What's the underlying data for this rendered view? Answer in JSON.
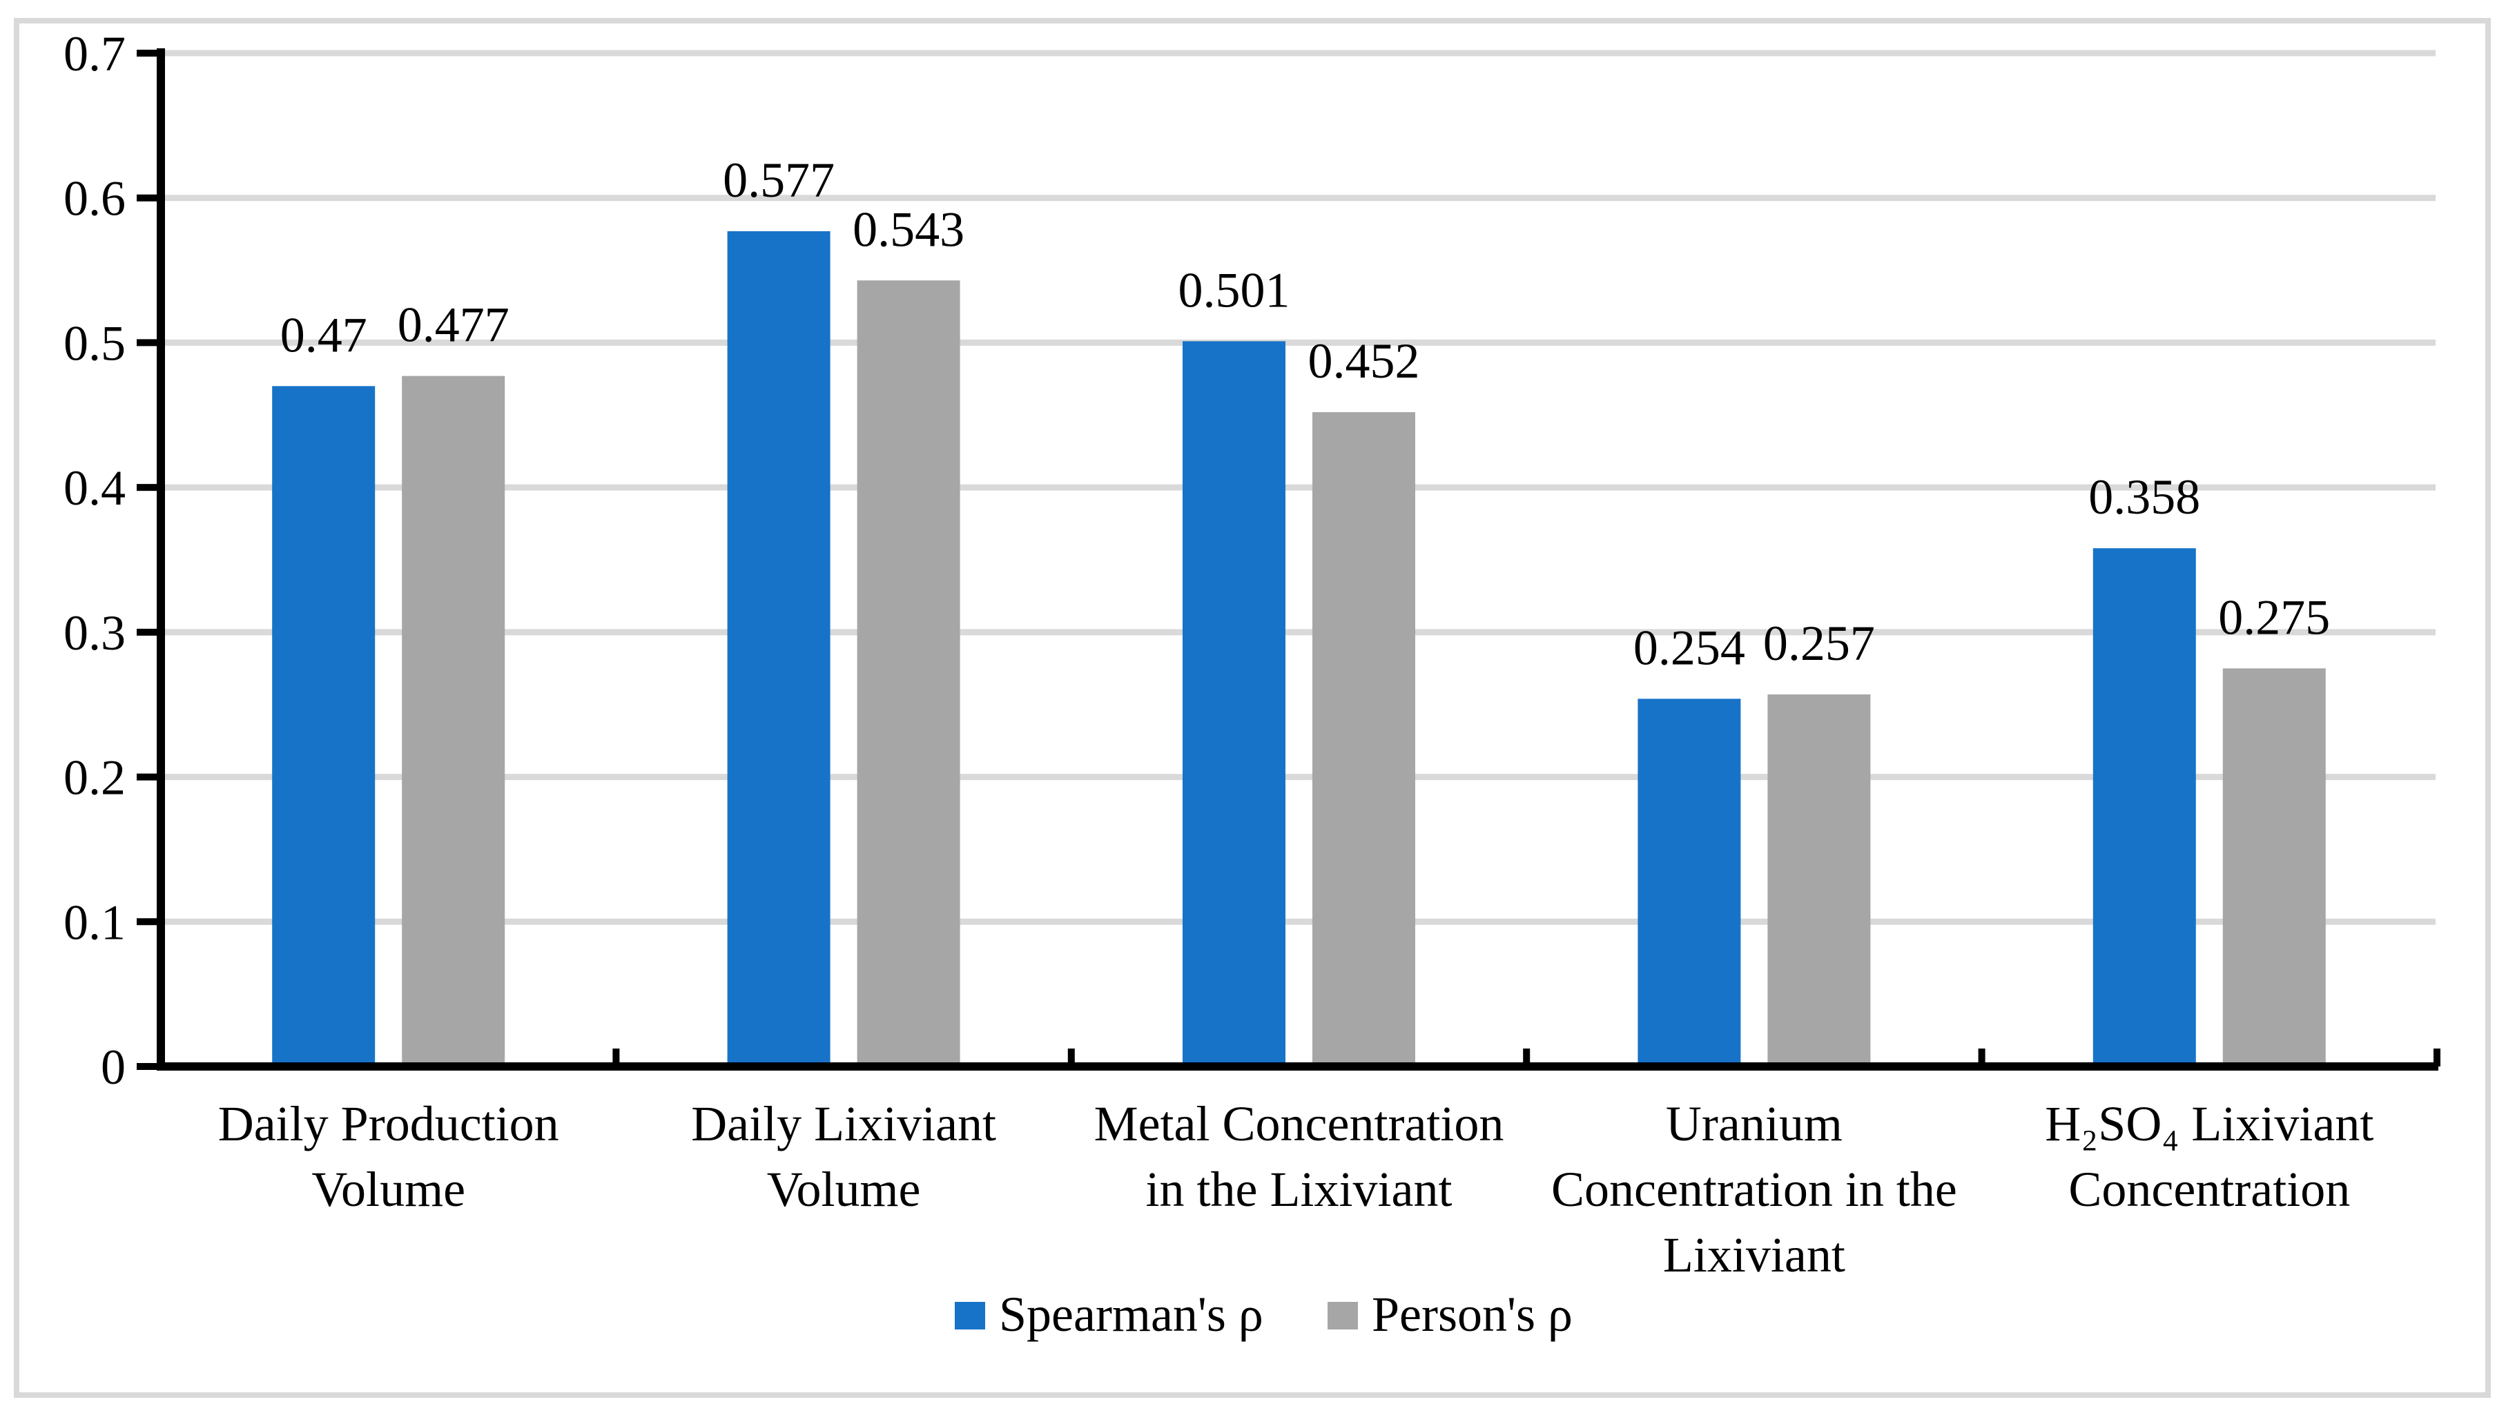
{
  "chart_data": {
    "type": "bar",
    "title": "",
    "xlabel": "",
    "ylabel": "",
    "grid": true,
    "legend_position": "bottom",
    "background_color": "#ffffff",
    "frame_color": "#d9d9d9",
    "gridline_color": "#d9d9d9",
    "axis_color": "#000000",
    "categories": [
      {
        "label": "Daily Production Volume",
        "lines": [
          "Daily Production",
          "Volume"
        ]
      },
      {
        "label": "Daily Lixiviant Volume",
        "lines": [
          "Daily Lixiviant",
          "Volume"
        ]
      },
      {
        "label": "Metal Concentration in the Lixiviant",
        "lines": [
          "Metal Concentration",
          "in the Lixiviant"
        ]
      },
      {
        "label": "Uranium Concentration in the Lixiviant",
        "lines": [
          "Uranium",
          "Concentration in the",
          "Lixiviant"
        ]
      },
      {
        "label": "H₂SO₄ Lixiviant Concentration",
        "lines": [
          "H₂SO₄ Lixiviant",
          "Concentration"
        ]
      }
    ],
    "series": [
      {
        "name": "Spearman's ρ",
        "color": "#1773c8",
        "values": [
          0.47,
          0.577,
          0.501,
          0.254,
          0.358
        ],
        "data_labels": [
          "0.47",
          "0.577",
          "0.501",
          "0.254",
          "0.358"
        ]
      },
      {
        "name": "Person's ρ",
        "color": "#a6a6a6",
        "values": [
          0.477,
          0.543,
          0.452,
          0.257,
          0.275
        ],
        "data_labels": [
          "0.477",
          "0.543",
          "0.452",
          "0.257",
          "0.275"
        ]
      }
    ],
    "y_axis": {
      "min": 0,
      "max": 0.7,
      "step": 0.1,
      "tick_labels": [
        "0",
        "0.1",
        "0.2",
        "0.3",
        "0.4",
        "0.5",
        "0.6",
        "0.7"
      ]
    }
  }
}
